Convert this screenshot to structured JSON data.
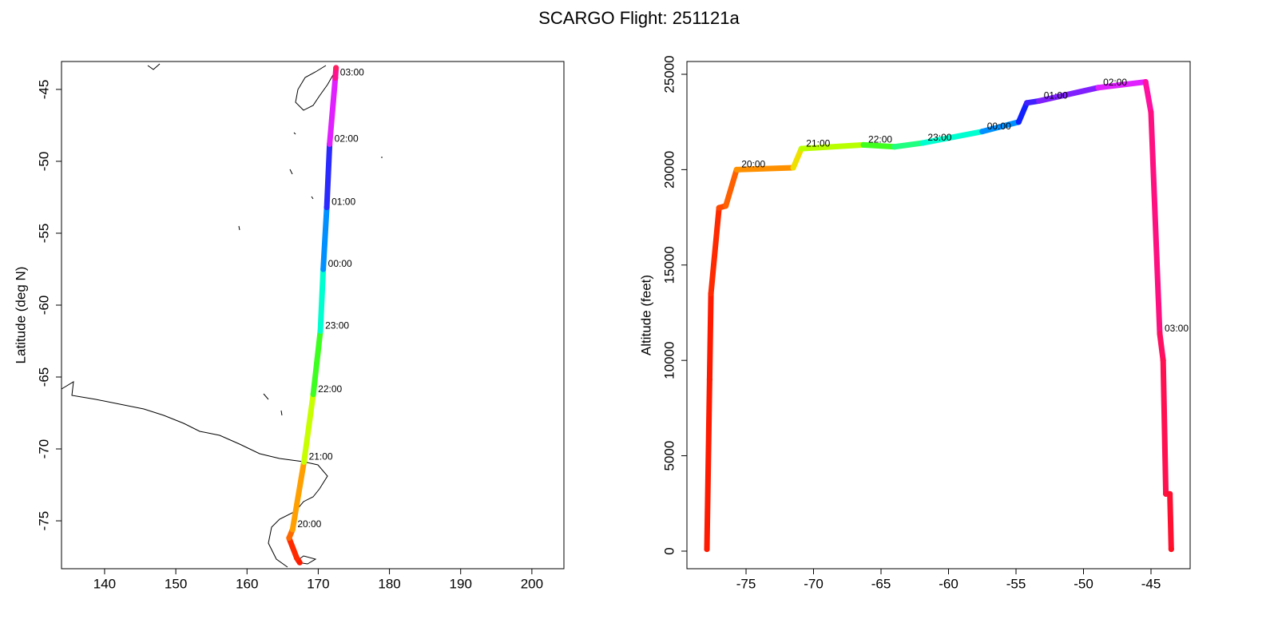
{
  "title": "SCARGO Flight: 251121a",
  "chart_data": [
    {
      "type": "line",
      "ylabel": "Latitude (deg N)",
      "x": [
        167.4,
        167.0,
        165.9,
        166.4,
        168.0,
        169.3,
        170.3,
        170.7,
        171.2,
        171.6,
        172.4,
        172.5
      ],
      "y": [
        -77.9,
        -77.6,
        -76.2,
        -75.6,
        -70.9,
        -66.2,
        -61.8,
        -57.5,
        -53.2,
        -48.8,
        -44.2,
        -43.5
      ],
      "labels": [
        null,
        null,
        null,
        "20:00",
        "21:00",
        "22:00",
        "23:00",
        "00:00",
        "01:00",
        "02:00",
        "03:00",
        null
      ],
      "colors": [
        "#ff1a00",
        "#ff2a00",
        "#ff6a00",
        "#ffa000",
        "#c8ff00",
        "#3cff20",
        "#00ffd0",
        "#0090ff",
        "#2a2aff",
        "#e020ff",
        "#ff1090",
        "#ff2060"
      ],
      "xlim": [
        133.95,
        204.5
      ],
      "ylim": [
        -78.33,
        -43.06
      ],
      "xticks": [
        140,
        150,
        160,
        170,
        180,
        190,
        200
      ],
      "yticks": [
        -45,
        -50,
        -55,
        -60,
        -65,
        -70,
        -75
      ]
    },
    {
      "type": "line",
      "ylabel": "Altitude (feet)",
      "x": [
        -77.9,
        -77.7,
        -77.6,
        -77.0,
        -76.5,
        -75.7,
        -71.5,
        -70.9,
        -66.3,
        -64.0,
        -61.9,
        -57.5,
        -54.8,
        -54.2,
        -53.3,
        -48.9,
        -45.4,
        -45.0,
        -44.35,
        -44.1,
        -43.9,
        -43.6,
        -43.5
      ],
      "y": [
        100,
        9000,
        13500,
        18000,
        18100,
        20000,
        20100,
        21100,
        21300,
        21200,
        21400,
        22000,
        22500,
        23500,
        23600,
        24300,
        24600,
        23000,
        11400,
        10000,
        3000,
        3000,
        100
      ],
      "labels": [
        null,
        null,
        null,
        null,
        null,
        "20:00",
        null,
        "21:00",
        "22:00",
        null,
        "23:00",
        "00:00",
        null,
        null,
        "01:00",
        "02:00",
        null,
        null,
        "03:00",
        null,
        null,
        null,
        null
      ],
      "colors": [
        "#ff1a00",
        "#ff1a00",
        "#ff2a00",
        "#ff4a00",
        "#ff6000",
        "#ff9000",
        "#f0e000",
        "#b8ff00",
        "#40ff20",
        "#20ff80",
        "#00ffd0",
        "#0090ff",
        "#1020ff",
        "#4020ff",
        "#8020ff",
        "#e020ff",
        "#ff10a0",
        "#ff1080",
        "#ff1060",
        "#ff1050",
        "#ff1040",
        "#ff1030",
        "#ff1020"
      ],
      "xlim": [
        -79.38,
        -42.1
      ],
      "ylim": [
        -922,
        25670
      ],
      "xticks": [
        -75,
        -70,
        -65,
        -60,
        -55,
        -50,
        -45
      ],
      "yticks": [
        0,
        5000,
        10000,
        15000,
        20000,
        25000
      ]
    }
  ]
}
